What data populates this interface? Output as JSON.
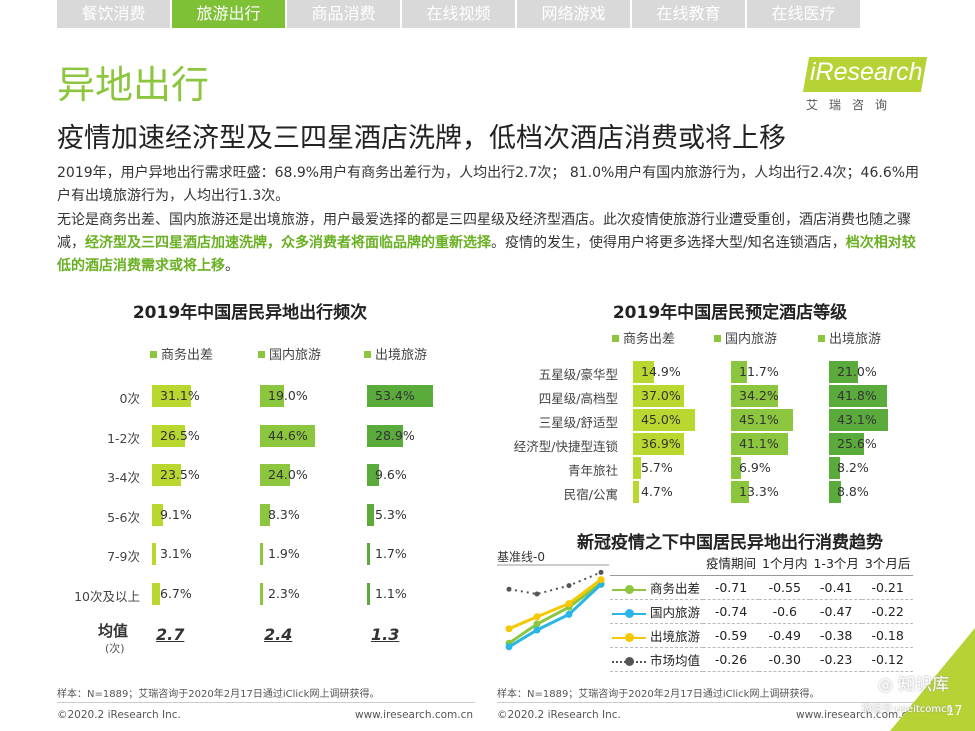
{
  "tabs": [
    "餐饮消费",
    "旅游出行",
    "商品消费",
    "在线视频",
    "网络游戏",
    "在线教育",
    "在线医疗"
  ],
  "active_tab": 1,
  "page_title": "异地出行",
  "headline": "疫情加速经济型及三四星酒店洗牌，低档次酒店消费或将上移",
  "logo": {
    "brand": "iResearch",
    "cn": "艾瑞咨询"
  },
  "paragraph1": "2019年，用户异地出行需求旺盛：68.9%用户有商务出差行为，人均出行2.7次； 81.0%用户有国内旅游行为，人均出行2.4次；46.6%用户有出境旅游行为，人均出行1.3次。",
  "paragraph2": {
    "p1": "无论是商务出差、国内旅游还是出境旅游，用户最爱选择的都是三四星级及经济型酒店。此次疫情使旅游行业遭受重创，酒店消费也随之骤减，",
    "h1": "经济型及三四星酒店加速洗牌，众多消费者将面临品牌的重新选择",
    "p2": "。疫情的发生，使得用户将更多选择大型/知名连锁酒店，",
    "h2": "档次相对较低的酒店消费需求或将上移",
    "p3": "。"
  },
  "colors": {
    "accent": "#8cc63f",
    "light": "#b8d830",
    "dark": "#5aaa3c",
    "business": "#8cc63f",
    "domestic": "#29b6e6",
    "outbound": "#f5c800",
    "market": "#555555"
  },
  "chart_data": [
    {
      "type": "bar",
      "title": "2019年中国居民异地出行频次",
      "categories": [
        "0次",
        "1-2次",
        "3-4次",
        "5-6次",
        "7-9次",
        "10次及以上"
      ],
      "series": [
        {
          "name": "商务出差",
          "values": [
            31.1,
            26.5,
            23.5,
            9.1,
            3.1,
            6.7
          ],
          "average": "2.7"
        },
        {
          "name": "国内旅游",
          "values": [
            19.0,
            44.6,
            24.0,
            8.3,
            1.9,
            2.3
          ],
          "average": "2.4"
        },
        {
          "name": "出境旅游",
          "values": [
            53.4,
            28.9,
            9.6,
            5.3,
            1.7,
            1.1
          ],
          "average": "1.3"
        }
      ],
      "value_labels": [
        [
          "31.1%",
          "26.5%",
          "23.5%",
          "9.1%",
          "3.1%",
          "6.7%"
        ],
        [
          "19.0%",
          "44.6%",
          "24.0%",
          "8.3%",
          "1.9%",
          "2.3%"
        ],
        [
          "53.4%",
          "28.9%",
          "9.6%",
          "5.3%",
          "1.7%",
          "1.1%"
        ]
      ],
      "average_label": "均值",
      "average_unit": "(次)"
    },
    {
      "type": "bar",
      "title": "2019年中国居民预定酒店等级",
      "categories": [
        "五星级/豪华型",
        "四星级/高档型",
        "三星级/舒适型",
        "经济型/快捷型连锁",
        "青年旅社",
        "民宿/公寓"
      ],
      "series": [
        {
          "name": "商务出差",
          "values": [
            14.9,
            37.0,
            45.0,
            36.9,
            5.7,
            4.7
          ]
        },
        {
          "name": "国内旅游",
          "values": [
            11.7,
            34.2,
            45.1,
            41.1,
            6.9,
            13.3
          ]
        },
        {
          "name": "出境旅游",
          "values": [
            21.0,
            41.8,
            43.1,
            25.6,
            8.2,
            8.8
          ]
        }
      ],
      "value_labels": [
        [
          "14.9%",
          "37.0%",
          "45.0%",
          "36.9%",
          "5.7%",
          "4.7%"
        ],
        [
          "11.7%",
          "34.2%",
          "45.1%",
          "41.1%",
          "6.9%",
          "13.3%"
        ],
        [
          "21.0%",
          "41.8%",
          "43.1%",
          "25.6%",
          "8.2%",
          "8.8%"
        ]
      ]
    },
    {
      "type": "line",
      "title": "新冠疫情之下中国居民异地出行消费趋势",
      "baseline_label": "基准线-0",
      "x": [
        "疫情期间",
        "1个月内",
        "1-3个月",
        "3个月后"
      ],
      "series": [
        {
          "name": "商务出差",
          "values": [
            -0.71,
            -0.55,
            -0.41,
            -0.21
          ],
          "labels": [
            "-0.71",
            "-0.55",
            "-0.41",
            "-0.21"
          ]
        },
        {
          "name": "国内旅游",
          "values": [
            -0.74,
            -0.6,
            -0.47,
            -0.22
          ],
          "labels": [
            "-0.74",
            "-0.6",
            "-0.47",
            "-0.22"
          ]
        },
        {
          "name": "出境旅游",
          "values": [
            -0.59,
            -0.49,
            -0.38,
            -0.18
          ],
          "labels": [
            "-0.59",
            "-0.49",
            "-0.38",
            "-0.18"
          ]
        },
        {
          "name": "市场均值",
          "values": [
            -0.26,
            -0.3,
            -0.23,
            -0.12
          ],
          "labels": [
            "-0.26",
            "-0.30",
            "-0.23",
            "-0.12"
          ]
        }
      ]
    }
  ],
  "note_left": "样本：N=1889；艾瑞咨询于2020年2月17日通过iClick网上调研获得。",
  "note_right": "样本：N=1889；艾瑞咨询于2020年2月17日通过iClick网上调研获得。",
  "footer": {
    "copyright_left": "©2020.2 iResearch Inc.",
    "site_left": "www.iresearch.com.cn",
    "copyright_right": "©2020.2 iResearch Inc.",
    "site_right": "www.iresearch.com.cn",
    "page": "17"
  },
  "watermark": {
    "text": "知识库",
    "sub": "微信号:useitcomcn"
  }
}
